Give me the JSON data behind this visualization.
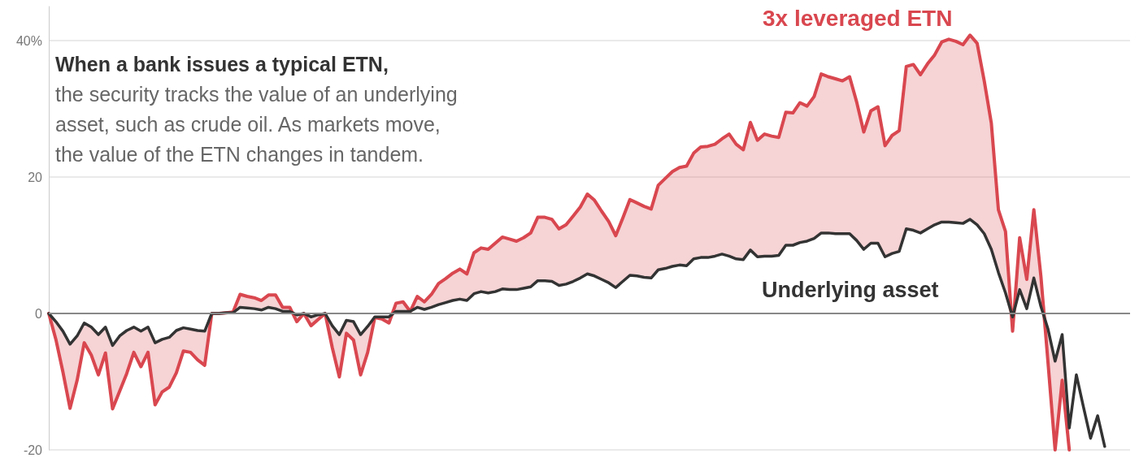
{
  "chart_data": {
    "type": "line",
    "ylim": [
      -20,
      45
    ],
    "yticks": [
      -20,
      0,
      20,
      {
        "value": 40,
        "label": "40%"
      }
    ],
    "grid": "y",
    "categories": [
      null,
      null,
      null,
      null,
      null,
      null,
      null,
      null,
      null,
      null,
      null,
      null,
      null,
      null,
      null,
      null,
      null,
      null,
      null,
      null,
      null,
      null,
      null,
      null,
      null,
      null,
      null,
      null,
      null,
      null,
      null,
      null,
      null,
      null,
      null,
      null,
      null,
      null,
      null,
      null,
      null,
      null,
      null,
      null,
      null,
      null,
      null,
      null,
      null,
      null,
      null,
      null,
      null,
      null,
      null,
      null,
      null,
      null,
      null,
      null,
      null,
      null,
      null,
      null,
      null,
      null,
      null,
      null,
      null,
      null,
      null,
      null,
      null,
      null,
      null,
      null,
      null,
      null,
      null,
      null,
      null,
      null,
      null,
      null,
      null,
      null,
      null,
      null,
      null,
      null,
      null,
      null,
      null,
      null,
      null,
      null,
      null,
      null,
      null,
      null,
      null,
      null,
      null,
      null,
      null,
      null,
      null,
      null,
      null,
      null,
      null,
      null,
      null,
      null,
      null,
      null,
      null,
      null,
      null,
      null,
      null,
      null,
      null,
      null,
      null,
      null,
      null,
      null,
      null,
      null,
      null,
      null,
      null,
      null,
      null,
      null,
      null,
      null,
      null,
      null,
      null,
      null,
      null,
      null,
      null,
      null,
      null,
      null,
      null,
      null
    ],
    "series": [
      {
        "name": "3x leveraged ETN",
        "color": "#d9474f",
        "values": [
          0,
          -3.8,
          -8.6,
          -13.9,
          -9.8,
          -4.3,
          -6.1,
          -9.0,
          -5.8,
          -14.0,
          -11.4,
          -8.8,
          -5.7,
          -7.8,
          -5.7,
          -13.4,
          -11.5,
          -10.8,
          -8.7,
          -5.5,
          -5.7,
          -6.8,
          -7.6,
          0,
          0,
          0.1,
          0.2,
          2.8,
          2.5,
          2.3,
          1.9,
          2.7,
          2.7,
          0.9,
          0.9,
          -1.2,
          0,
          -1.8,
          -0.9,
          0,
          -5.0,
          -9.3,
          -2.9,
          -3.9,
          -9.0,
          -5.7,
          -0.6,
          -0.8,
          -1.4,
          1.5,
          1.7,
          0.3,
          2.5,
          1.7,
          2.8,
          4.4,
          5.1,
          5.9,
          6.5,
          5.8,
          8.9,
          9.6,
          9.4,
          10.3,
          11.2,
          10.9,
          10.6,
          11.1,
          11.8,
          14.1,
          14.1,
          13.8,
          12.4,
          13.0,
          14.3,
          15.6,
          17.5,
          16.6,
          15.0,
          13.5,
          11.4,
          14.0,
          16.7,
          16.2,
          15.7,
          15.3,
          18.8,
          19.8,
          20.8,
          21.4,
          21.6,
          23.5,
          24.4,
          24.5,
          24.8,
          25.6,
          26.3,
          24.8,
          24.0,
          28.0,
          25.4,
          26.3,
          26.0,
          25.8,
          29.5,
          29.4,
          30.9,
          30.4,
          31.8,
          35.1,
          34.7,
          34.4,
          34.1,
          34.7,
          31.0,
          26.6,
          29.7,
          30.3,
          24.6,
          26.1,
          26.8,
          36.2,
          36.5,
          35.0,
          36.6,
          37.9,
          39.8,
          40.2,
          39.9,
          39.4,
          40.8,
          39.6,
          34.1,
          27.9,
          15.2,
          12.0,
          -2.6,
          11.1,
          5.0,
          15.2,
          5.4,
          -7.2,
          -20,
          -9.8,
          -20,
          null,
          null,
          null,
          null,
          null
        ],
        "lower": [
          0,
          -3.8,
          -8.6,
          -13.9,
          -9.8,
          -4.3,
          -6.1,
          -9.0,
          -5.8,
          -14.0,
          -11.4,
          -8.8,
          -5.7,
          -7.8,
          -5.7,
          -13.4,
          -11.5,
          -10.8,
          -8.7,
          -5.5,
          -5.7,
          -6.8,
          -7.6,
          0,
          0,
          0.1,
          0.1,
          0.9,
          0.8,
          0.7,
          0.5,
          0.9,
          0.7,
          0.3,
          0.3,
          -1.2,
          0,
          -1.8,
          -0.9,
          0,
          -5.0,
          -9.3,
          -2.9,
          -3.9,
          -9.0,
          -5.7,
          -0.6,
          -0.8,
          -1.4,
          0.3,
          0.3,
          0.3,
          0.9,
          0.6,
          0.9,
          1.3,
          1.6,
          1.9,
          2.1,
          1.9,
          2.9,
          3.2,
          3.0,
          3.2,
          3.6,
          3.5,
          3.5,
          3.7,
          3.9,
          4.8,
          4.8,
          4.7,
          4.1,
          4.3,
          4.7,
          5.2,
          5.8,
          5.5,
          5.0,
          4.5,
          3.8,
          4.7,
          5.6,
          5.5,
          5.3,
          5.2,
          6.4,
          6.6,
          6.9,
          7.1,
          7.0,
          8.0,
          8.2,
          8.2,
          8.4,
          8.7,
          8.4,
          8.0,
          7.9,
          9.3,
          8.3,
          8.4,
          8.4,
          8.5,
          10.0,
          10.0,
          10.4,
          10.6,
          11.0,
          11.8,
          11.8,
          11.7,
          11.7,
          11.7,
          10.7,
          9.4,
          10.3,
          10.3,
          8.3,
          8.8,
          9.1,
          12.4,
          12.2,
          11.8,
          12.4,
          13.0,
          13.4,
          13.4,
          13.3,
          13.2,
          13.8,
          13.0,
          11.7,
          9.4,
          6.0,
          3.0,
          -2.6,
          3.5,
          0.7,
          5.2,
          1.0,
          -7.2,
          -20,
          -9.8,
          -20,
          null,
          null,
          null,
          null,
          null
        ],
        "upper": [
          0,
          -1.2,
          -2.6,
          -4.5,
          -3.3,
          -1.4,
          -2.0,
          -3.1,
          -2.0,
          -4.7,
          -3.3,
          -2.5,
          -2.0,
          -2.6,
          -2.0,
          -4.3,
          -3.8,
          -3.5,
          -2.5,
          -2.1,
          -2.3,
          -2.5,
          -2.6,
          0,
          0,
          0.1,
          0.2,
          2.8,
          2.5,
          2.3,
          1.9,
          2.7,
          2.7,
          0.9,
          0.9,
          -0.2,
          0,
          -0.5,
          -0.2,
          0,
          -1.8,
          -3.1,
          -1.0,
          -1.2,
          -3.1,
          -1.9,
          -0.5,
          -0.5,
          -0.5,
          1.5,
          1.7,
          0.3,
          2.5,
          1.7,
          2.8,
          4.4,
          5.1,
          5.9,
          6.5,
          5.8,
          8.9,
          9.6,
          9.4,
          10.3,
          11.2,
          10.9,
          10.6,
          11.1,
          11.8,
          14.1,
          14.1,
          13.8,
          12.4,
          13.0,
          14.3,
          15.6,
          17.5,
          16.6,
          15.0,
          13.5,
          11.4,
          14.0,
          16.7,
          16.2,
          15.7,
          15.3,
          18.8,
          19.8,
          20.8,
          21.4,
          21.6,
          23.5,
          24.4,
          24.5,
          24.8,
          25.6,
          26.3,
          24.8,
          24.0,
          28.0,
          25.4,
          26.3,
          26.0,
          25.8,
          29.5,
          29.4,
          30.9,
          30.4,
          31.8,
          35.1,
          34.7,
          34.4,
          34.1,
          34.7,
          31.0,
          26.6,
          29.7,
          30.3,
          24.6,
          26.1,
          26.8,
          36.2,
          36.5,
          35.0,
          36.6,
          37.9,
          39.8,
          40.2,
          39.9,
          39.4,
          40.8,
          39.6,
          34.1,
          27.9,
          15.2,
          12.0,
          -0.5,
          11.1,
          5.0,
          15.2,
          5.4,
          -2.3,
          -7.0,
          -3.1,
          -16.8,
          null,
          null,
          null,
          null,
          null
        ]
      },
      {
        "name": "Underlying asset",
        "color": "#333333",
        "values": [
          0,
          -1.2,
          -2.6,
          -4.5,
          -3.3,
          -1.4,
          -2.0,
          -3.1,
          -2.0,
          -4.7,
          -3.3,
          -2.5,
          -2.0,
          -2.6,
          -2.0,
          -4.3,
          -3.8,
          -3.5,
          -2.5,
          -2.1,
          -2.3,
          -2.5,
          -2.6,
          0,
          0,
          0.1,
          0.1,
          0.9,
          0.8,
          0.7,
          0.5,
          0.9,
          0.7,
          0.3,
          0.3,
          -0.2,
          0,
          -0.5,
          -0.2,
          0,
          -1.8,
          -3.1,
          -1.0,
          -1.2,
          -3.1,
          -1.9,
          -0.5,
          -0.5,
          -0.5,
          0.3,
          0.3,
          0.3,
          0.9,
          0.6,
          0.9,
          1.3,
          1.6,
          1.9,
          2.1,
          1.9,
          2.9,
          3.2,
          3.0,
          3.2,
          3.6,
          3.5,
          3.5,
          3.7,
          3.9,
          4.8,
          4.8,
          4.7,
          4.1,
          4.3,
          4.7,
          5.2,
          5.8,
          5.5,
          5.0,
          4.5,
          3.8,
          4.7,
          5.6,
          5.5,
          5.3,
          5.2,
          6.4,
          6.6,
          6.9,
          7.1,
          7.0,
          8.0,
          8.2,
          8.2,
          8.4,
          8.7,
          8.4,
          8.0,
          7.9,
          9.3,
          8.3,
          8.4,
          8.4,
          8.5,
          10.0,
          10.0,
          10.4,
          10.6,
          11.0,
          11.8,
          11.8,
          11.7,
          11.7,
          11.7,
          10.7,
          9.4,
          10.3,
          10.3,
          8.3,
          8.8,
          9.1,
          12.4,
          12.2,
          11.8,
          12.4,
          13.0,
          13.4,
          13.4,
          13.3,
          13.2,
          13.8,
          13.0,
          11.7,
          9.4,
          6.0,
          3.0,
          -0.5,
          3.5,
          0.7,
          5.2,
          1.0,
          -2.3,
          -7.0,
          -3.1,
          -16.8,
          -9.0,
          -13.7,
          -18.3,
          -15.0,
          -19.5
        ]
      }
    ],
    "ref_lines": [
      {
        "axis": "y",
        "value": 0,
        "color": "#888888"
      }
    ],
    "annotations": [
      "When a bank issues a typical ETN,",
      "the security tracks the value of an underlying asset, such as crude oil. As markets move, the value of the ETN changes in tandem."
    ]
  }
}
